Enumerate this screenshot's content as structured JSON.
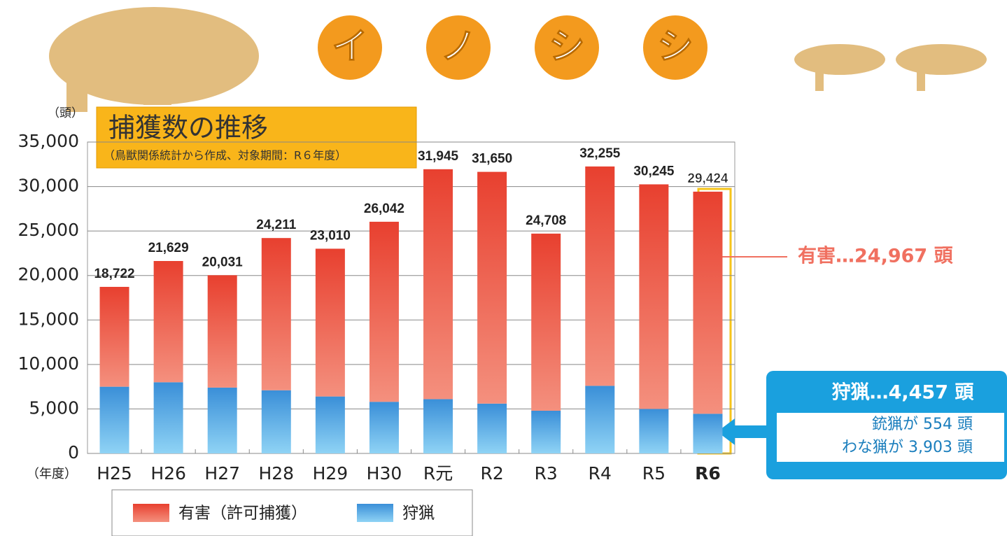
{
  "chart_data": {
    "type": "stacked_bar",
    "header": [
      "イ",
      "ノ",
      "シ",
      "シ"
    ],
    "title": "捕獲数の推移",
    "subtitle": "（鳥獣関係統計から作成、対象期間：R６年度）",
    "y_label": "（頭）",
    "x_label": "（年度）",
    "categories": [
      "H25",
      "H26",
      "H27",
      "H28",
      "H29",
      "H30",
      "R元",
      "R2",
      "R3",
      "R4",
      "R5",
      "R6"
    ],
    "series": [
      {
        "name": "狩猟",
        "color": "#3a8fd8",
        "values": [
          7500,
          8000,
          7400,
          7100,
          6400,
          5800,
          6100,
          5600,
          4800,
          7600,
          5000,
          4457
        ]
      },
      {
        "name": "有害（許可捕獲）",
        "color": "#e8402f",
        "values": [
          11222,
          13629,
          12631,
          17111,
          16610,
          20242,
          25845,
          26050,
          19908,
          24655,
          25245,
          24967
        ]
      }
    ],
    "totals": {
      "values": [
        18722,
        21629,
        20031,
        24211,
        23010,
        26042,
        31945,
        31650,
        24708,
        32255,
        30245,
        29424
      ],
      "value_labels": [
        "18,722",
        "21,629",
        "20,031",
        "24,211",
        "23,010",
        "26,042",
        "31,945",
        "31,650",
        "24,708",
        "32,255",
        "30,245",
        "29,424"
      ]
    },
    "ylim": [
      0,
      35000
    ],
    "yticks": [
      0,
      {
        "value": 5000,
        "label": "5,000"
      },
      {
        "value": 10000,
        "label": "10,000"
      },
      {
        "value": 15000,
        "label": "15,000"
      },
      {
        "value": 20000,
        "label": "20,000"
      },
      {
        "value": 25000,
        "label": "25,000"
      },
      {
        "value": 30000,
        "label": "30,000"
      },
      {
        "value": 35000,
        "label": "35,000"
      }
    ],
    "grid": true,
    "annotations": [
      "有害…24,967 頭",
      "狩猟…4,457 頭",
      "銃猟が 554 頭",
      "わな猟が 3,903 頭"
    ]
  }
}
